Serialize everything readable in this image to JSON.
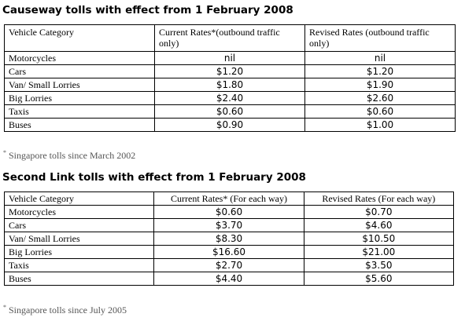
{
  "causeway": {
    "title": "Causeway tolls with effect from 1 February 2008",
    "headers": [
      "Vehicle Category",
      "Current Rates*(outbound traffic only)",
      "Revised Rates (outbound traffic only)"
    ],
    "rows": [
      {
        "category": "Motorcycles",
        "current": "nil",
        "revised": "nil"
      },
      {
        "category": "Cars",
        "current": "$1.20",
        "revised": "$1.20"
      },
      {
        "category": "Van/ Small Lorries",
        "current": "$1.80",
        "revised": "$1.90"
      },
      {
        "category": "Big Lorries",
        "current": "$2.40",
        "revised": "$2.60"
      },
      {
        "category": "Taxis",
        "current": "$0.60",
        "revised": "$0.60"
      },
      {
        "category": "Buses",
        "current": "$0.90",
        "revised": "$1.00"
      }
    ],
    "note_mark": "*",
    "note": "Singapore tolls since March 2002"
  },
  "second_link": {
    "title": "Second Link tolls with effect from 1 February 2008",
    "headers": [
      "Vehicle Category",
      "Current Rates* (For each way)",
      "Revised Rates (For each way)"
    ],
    "rows": [
      {
        "category": "Motorcycles",
        "current": "$0.60",
        "revised": "$0.70"
      },
      {
        "category": "Cars",
        "current": "$3.70",
        "revised": "$4.60"
      },
      {
        "category": "Van/ Small Lorries",
        "current": "$8.30",
        "revised": "$10.50"
      },
      {
        "category": "Big Lorries",
        "current": "$16.60",
        "revised": "$21.00"
      },
      {
        "category": "Taxis",
        "current": "$2.70",
        "revised": "$3.50"
      },
      {
        "category": "Buses",
        "current": "$4.40",
        "revised": "$5.60"
      }
    ],
    "note_mark": "*",
    "note": "Singapore tolls since July 2005"
  }
}
